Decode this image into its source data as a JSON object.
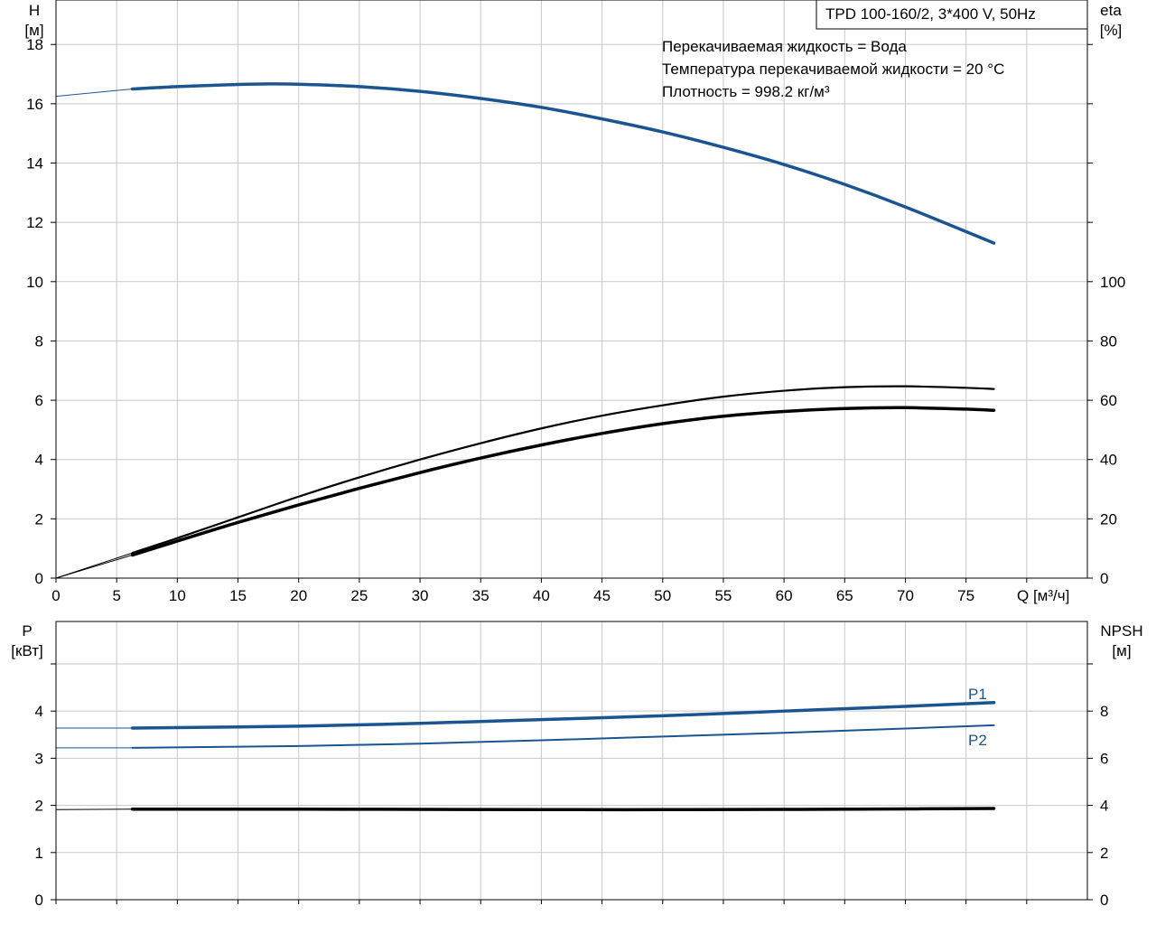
{
  "header": {
    "pump_model": "TPD 100-160/2, 3*400 V, 50Hz",
    "info_lines": [
      "Перекачиваемая жидкость = Вода",
      "Температура перекачиваемой жидкости = 20 °C",
      "Плотность = 998.2 кг/м³"
    ]
  },
  "colors": {
    "blue": "#1a5592",
    "black": "#000000",
    "grid": "#c8c8c8"
  },
  "chart_data": [
    {
      "type": "line",
      "panel": "head-efficiency",
      "xlabel": "Q [м³/ч]",
      "ylabel_left": [
        "H",
        "[м]"
      ],
      "ylabel_right": [
        "eta",
        "[%]"
      ],
      "xlim": [
        0,
        85
      ],
      "ylim_left": [
        0,
        19.5
      ],
      "ylim_right": [
        0,
        195
      ],
      "xticks": [
        0,
        5,
        10,
        15,
        20,
        25,
        30,
        35,
        40,
        45,
        50,
        55,
        60,
        65,
        70,
        75
      ],
      "yticks_left": [
        0,
        2,
        4,
        6,
        8,
        10,
        12,
        14,
        16,
        18
      ],
      "yticks_right": [
        0,
        20,
        40,
        60,
        80,
        100
      ],
      "grid": true,
      "series": [
        {
          "axis": "left",
          "color": "#1a5592",
          "width": 3.5,
          "x": [
            6.3,
            10,
            15,
            17.5,
            20,
            25,
            30,
            35,
            40,
            45,
            50,
            55,
            60,
            65,
            70,
            77.3
          ],
          "y": [
            16.5,
            16.58,
            16.65,
            16.67,
            16.66,
            16.58,
            16.42,
            16.18,
            15.88,
            15.49,
            15.05,
            14.53,
            13.95,
            13.28,
            12.52,
            11.3
          ],
          "extension": {
            "x": [
              0,
              6.3
            ],
            "y": [
              16.25,
              16.5
            ]
          }
        },
        {
          "axis": "right",
          "color": "#000000",
          "width": 2.2,
          "x": [
            6.3,
            10,
            15,
            20,
            25,
            30,
            35,
            40,
            45,
            50,
            55,
            60,
            65,
            70,
            75,
            77.3
          ],
          "y": [
            8.5,
            13.5,
            20.5,
            27.5,
            34,
            40,
            45.5,
            50.5,
            54.8,
            58.3,
            61.2,
            63.2,
            64.4,
            64.7,
            64.2,
            63.8
          ],
          "extension": {
            "x": [
              0,
              6.3
            ],
            "y": [
              0,
              8.5
            ]
          }
        },
        {
          "axis": "right",
          "color": "#000000",
          "width": 3.5,
          "x": [
            6.3,
            10,
            15,
            20,
            25,
            30,
            35,
            40,
            45,
            50,
            55,
            60,
            65,
            70,
            75,
            77.3
          ],
          "y": [
            7.8,
            12.5,
            18.8,
            24.7,
            30.3,
            35.6,
            40.5,
            44.9,
            48.8,
            52.1,
            54.6,
            56.2,
            57.2,
            57.5,
            57.0,
            56.6
          ],
          "extension": {
            "x": [
              0,
              6.3
            ],
            "y": [
              0,
              7.8
            ]
          }
        }
      ]
    },
    {
      "type": "line",
      "panel": "power-npsh",
      "ylabel_left": [
        "P",
        "[кВт]"
      ],
      "ylabel_right": [
        "NPSH",
        "[м]"
      ],
      "xlim": [
        0,
        85
      ],
      "ylim_left": [
        0,
        5.9
      ],
      "ylim_right": [
        0,
        11.8
      ],
      "yticks_left": [
        0,
        1,
        2,
        3,
        4
      ],
      "yticks_right": [
        0,
        2,
        4,
        6,
        8
      ],
      "grid": true,
      "series": [
        {
          "name": "P1",
          "axis": "left",
          "color": "#1a5592",
          "width": 3.5,
          "x": [
            6.3,
            20,
            30,
            40,
            50,
            60,
            70,
            77.3
          ],
          "y": [
            3.64,
            3.68,
            3.74,
            3.82,
            3.9,
            4.0,
            4.1,
            4.18
          ],
          "extension": {
            "x": [
              0,
              6.3
            ],
            "y": [
              3.64,
              3.64
            ]
          }
        },
        {
          "name": "P2",
          "axis": "left",
          "color": "#1a5592",
          "width": 2,
          "x": [
            6.3,
            20,
            30,
            40,
            50,
            60,
            70,
            77.3
          ],
          "y": [
            3.22,
            3.26,
            3.31,
            3.38,
            3.46,
            3.54,
            3.63,
            3.7
          ],
          "extension": {
            "x": [
              0,
              6.3
            ],
            "y": [
              3.22,
              3.22
            ]
          }
        },
        {
          "axis": "right",
          "color": "#000000",
          "width": 3.5,
          "x": [
            6.3,
            20,
            30,
            40,
            50,
            60,
            70,
            77.3
          ],
          "y": [
            3.84,
            3.84,
            3.83,
            3.82,
            3.82,
            3.83,
            3.85,
            3.87
          ],
          "extension": {
            "x": [
              0,
              6.3
            ],
            "y": [
              3.82,
              3.84
            ]
          }
        }
      ]
    }
  ]
}
